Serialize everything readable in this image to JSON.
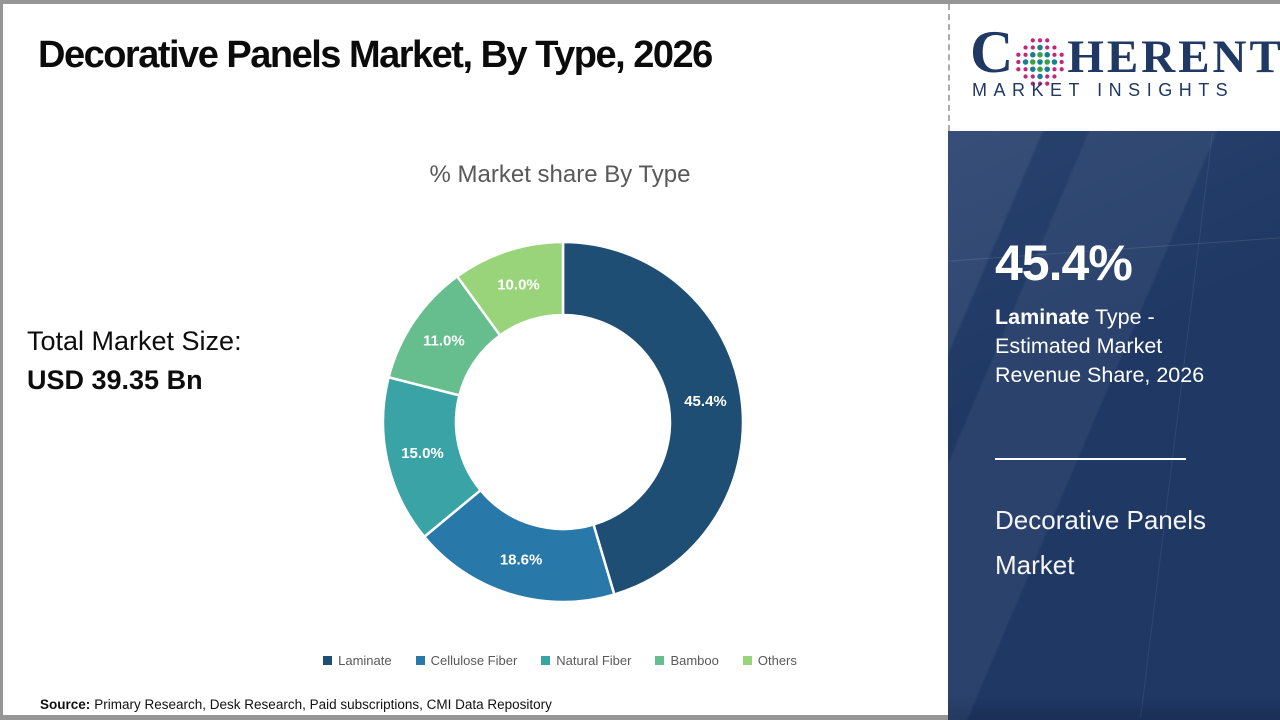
{
  "page": {
    "title": "Decorative Panels Market, By Type, 2026",
    "source_label": "Source:",
    "source_text": "Primary Research, Desk Research, Paid subscriptions, CMI Data Repository"
  },
  "logo": {
    "word_start": "C",
    "word_end": "HERENT",
    "subtitle": "MARKET INSIGHTS",
    "brand_color": "#1f3864",
    "sphere_colors": {
      "teal": "#17808f",
      "green": "#3fa048",
      "magenta": "#c2267d"
    }
  },
  "left_stat": {
    "label": "Total Market Size:",
    "value": "USD 39.35 Bn"
  },
  "chart_data": {
    "type": "pie",
    "donut": true,
    "title": "% Market share By Type",
    "start_angle_deg": 0,
    "direction": "clockwise",
    "categories": [
      "Laminate",
      "Cellulose Fiber",
      "Natural Fiber",
      "Bamboo",
      "Others"
    ],
    "values": [
      45.4,
      18.6,
      15.0,
      11.0,
      10.0
    ],
    "labels": [
      "45.4%",
      "18.6%",
      "15.0%",
      "11.0%",
      "10.0%"
    ],
    "colors": [
      "#1f4e74",
      "#2878a9",
      "#3aa3a5",
      "#66be8e",
      "#9ad47a"
    ],
    "legend_position": "bottom",
    "label_color": "#ffffff"
  },
  "highlight_panel": {
    "stat_value": "45.4%",
    "desc_line1_bold": "Laminate",
    "desc_line1_rest": " Type -",
    "desc_line2": "Estimated Market",
    "desc_line3": "Revenue Share, 2026",
    "market_line1": "Decorative Panels",
    "market_line2": "Market",
    "panel_color": "#1f3864"
  }
}
